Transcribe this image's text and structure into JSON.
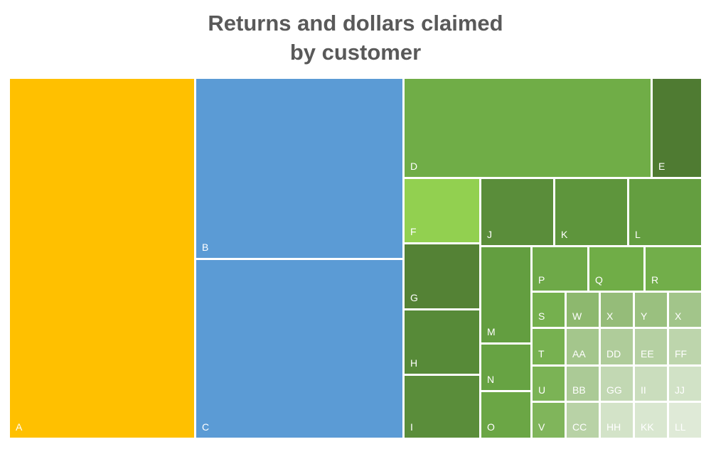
{
  "chart_data": {
    "type": "treemap",
    "title": [
      "Returns and dollars claimed",
      "by customer"
    ],
    "legend": "none",
    "tiles": [
      {
        "label": "A",
        "color": "#FFC000",
        "label_color": "#ffffff"
      },
      {
        "label": "B",
        "color": "#5B9BD5",
        "label_color": "#ffffff"
      },
      {
        "label": "C",
        "color": "#5B9BD5",
        "label_color": "#ffffff"
      },
      {
        "label": "D",
        "color": "#70AD47",
        "label_color": "#ffffff"
      },
      {
        "label": "E",
        "color": "#4F7B32",
        "label_color": "#ffffff"
      },
      {
        "label": "F",
        "color": "#92D050",
        "label_color": "#ffffff"
      },
      {
        "label": "J",
        "color": "#5A8D3A",
        "label_color": "#ffffff"
      },
      {
        "label": "K",
        "color": "#5E953C",
        "label_color": "#ffffff"
      },
      {
        "label": "L",
        "color": "#649E40",
        "label_color": "#ffffff"
      },
      {
        "label": "G",
        "color": "#548235",
        "label_color": "#ffffff"
      },
      {
        "label": "H",
        "color": "#578A38",
        "label_color": "#ffffff"
      },
      {
        "label": "I",
        "color": "#5A8D3A",
        "label_color": "#ffffff"
      },
      {
        "label": "M",
        "color": "#639E40",
        "label_color": "#ffffff"
      },
      {
        "label": "N",
        "color": "#67A343",
        "label_color": "#ffffff"
      },
      {
        "label": "O",
        "color": "#6BA645",
        "label_color": "#ffffff"
      },
      {
        "label": "P",
        "color": "#6EA948",
        "label_color": "#ffffff"
      },
      {
        "label": "Q",
        "color": "#70AD47",
        "label_color": "#ffffff"
      },
      {
        "label": "R",
        "color": "#72AE4A",
        "label_color": "#ffffff"
      },
      {
        "label": "S",
        "color": "#75B04E",
        "label_color": "#ffffff"
      },
      {
        "label": "W",
        "color": "#8DB86E",
        "label_color": "#ffffff"
      },
      {
        "label": "X",
        "color": "#95BC79",
        "label_color": "#ffffff"
      },
      {
        "label": "Y",
        "color": "#9AC07F",
        "label_color": "#ffffff"
      },
      {
        "label": "X",
        "color": "#A2C58A",
        "label_color": "#ffffff"
      },
      {
        "label": "T",
        "color": "#77B150",
        "label_color": "#ffffff"
      },
      {
        "label": "AA",
        "color": "#A4C68C",
        "label_color": "#ffffff"
      },
      {
        "label": "DD",
        "color": "#AFCC9A",
        "label_color": "#ffffff"
      },
      {
        "label": "EE",
        "color": "#B5D0A2",
        "label_color": "#ffffff"
      },
      {
        "label": "FF",
        "color": "#BDD5AC",
        "label_color": "#ffffff"
      },
      {
        "label": "U",
        "color": "#7BB355",
        "label_color": "#ffffff"
      },
      {
        "label": "BB",
        "color": "#ABCA96",
        "label_color": "#ffffff"
      },
      {
        "label": "GG",
        "color": "#C2D8B3",
        "label_color": "#ffffff"
      },
      {
        "label": "II",
        "color": "#CADDBD",
        "label_color": "#ffffff"
      },
      {
        "label": "JJ",
        "color": "#D1E2C6",
        "label_color": "#ffffff"
      },
      {
        "label": "V",
        "color": "#80B55B",
        "label_color": "#ffffff"
      },
      {
        "label": "CC",
        "color": "#B8D2A6",
        "label_color": "#ffffff"
      },
      {
        "label": "HH",
        "color": "#D3E3C8",
        "label_color": "#ffffff"
      },
      {
        "label": "KK",
        "color": "#D9E7D0",
        "label_color": "#ffffff"
      },
      {
        "label": "LL",
        "color": "#DFEAD7",
        "label_color": "#ffffff"
      }
    ]
  }
}
